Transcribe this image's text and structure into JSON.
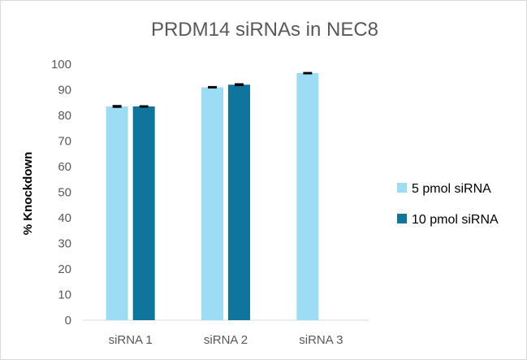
{
  "chart_data": {
    "type": "bar",
    "title": "PRDM14 siRNAs in NEC8",
    "xlabel": "",
    "ylabel": "% Knockdown",
    "ylim": [
      0,
      100
    ],
    "yticks": [
      0,
      10,
      20,
      30,
      40,
      50,
      60,
      70,
      80,
      90,
      100
    ],
    "categories": [
      "siRNA 1",
      "siRNA 2",
      "siRNA 3"
    ],
    "series": [
      {
        "name": "5 pmol siRNA",
        "color": "#9DDCF5",
        "values": [
          83.5,
          91,
          96.5
        ],
        "error": [
          0.4,
          0.3,
          0.3
        ]
      },
      {
        "name": "10 pmol siRNA",
        "color": "#0F759C",
        "values": [
          83.5,
          92,
          null
        ],
        "error": [
          0.3,
          0.4,
          null
        ]
      }
    ],
    "error_bars": true,
    "grid": false,
    "legend": "right"
  }
}
